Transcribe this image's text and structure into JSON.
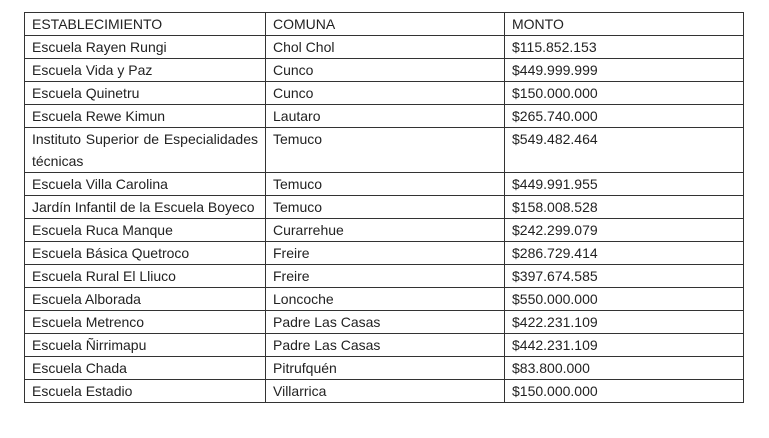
{
  "table": {
    "headers": [
      "ESTABLECIMIENTO",
      "COMUNA",
      "MONTO"
    ],
    "rows": [
      [
        "Escuela Rayen Rungi",
        "Chol Chol",
        "$115.852.153"
      ],
      [
        "Escuela Vida y Paz",
        "Cunco",
        "$449.999.999"
      ],
      [
        "Escuela Quinetru",
        "Cunco",
        "$150.000.000"
      ],
      [
        "Escuela Rewe Kimun",
        "Lautaro",
        "$265.740.000"
      ],
      [
        "Instituto Superior de Especialidades técnicas",
        "Temuco",
        "$549.482.464"
      ],
      [
        "Escuela Villa Carolina",
        "Temuco",
        "$449.991.955"
      ],
      [
        "Jardín Infantil de la Escuela Boyeco",
        "Temuco",
        "$158.008.528"
      ],
      [
        "Escuela Ruca Manque",
        "Curarrehue",
        "$242.299.079"
      ],
      [
        "Escuela Básica Quetroco",
        "Freire",
        "$286.729.414"
      ],
      [
        "Escuela Rural El Lliuco",
        "Freire",
        "$397.674.585"
      ],
      [
        "Escuela Alborada",
        "Loncoche",
        "$550.000.000"
      ],
      [
        "Escuela Metrenco",
        "Padre Las Casas",
        "$422.231.109"
      ],
      [
        "Escuela Ñirrimapu",
        "Padre Las Casas",
        "$442.231.109"
      ],
      [
        "Escuela Chada",
        "Pitrufquén",
        "$83.800.000"
      ],
      [
        "Escuela Estadio",
        "Villarrica",
        "$150.000.000"
      ]
    ]
  }
}
